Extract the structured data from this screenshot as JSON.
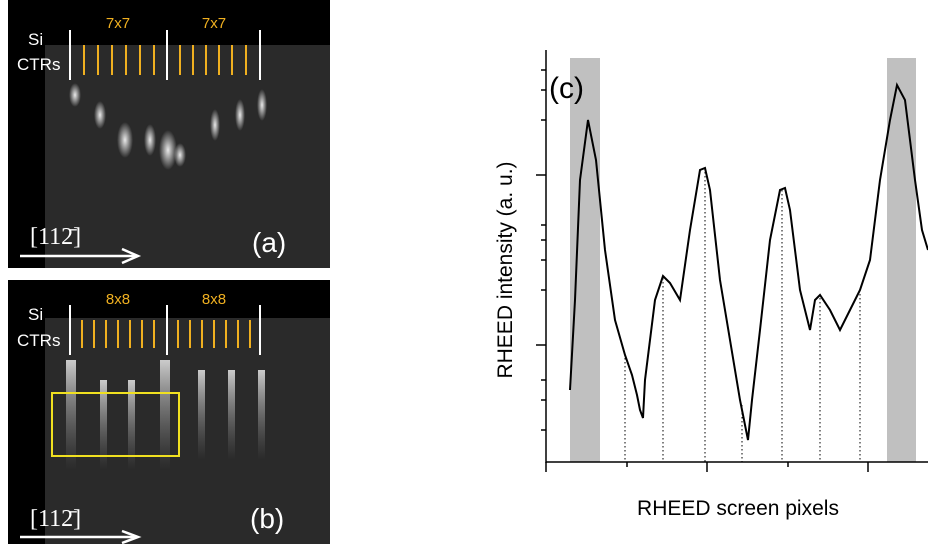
{
  "panel_a": {
    "si": "Si",
    "ctrs": "CTRs",
    "labels": [
      "7x7",
      "7x7"
    ],
    "direction": "[112̄]",
    "tag": "(a)"
  },
  "panel_b": {
    "si": "Si",
    "ctrs": "CTRs",
    "labels": [
      "8x8",
      "8x8"
    ],
    "direction": "[112̄]",
    "tag": "(b)"
  },
  "panel_c": {
    "tag": "(c)",
    "y_label": "RHEED intensity (a. u.)",
    "x_label": "RHEED screen pixels"
  }
}
